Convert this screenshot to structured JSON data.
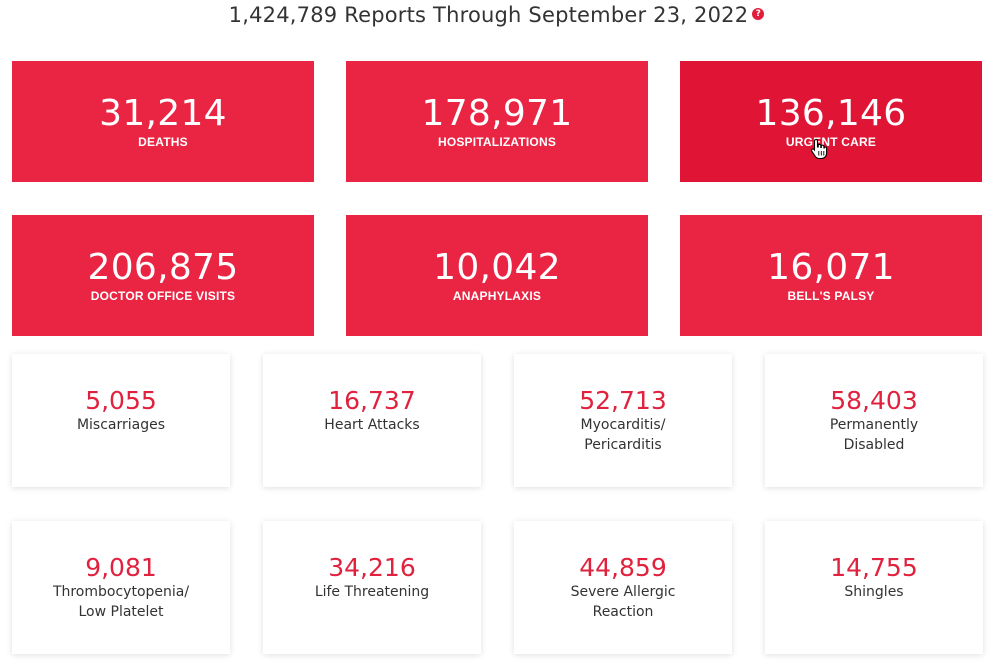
{
  "header": {
    "title": "1,424,789 Reports Through September 23, 2022",
    "help_glyph": "?"
  },
  "primary_stats": [
    {
      "value": "31,214",
      "label": "DEATHS"
    },
    {
      "value": "178,971",
      "label": "HOSPITALIZATIONS"
    },
    {
      "value": "136,146",
      "label": "URGENT CARE"
    },
    {
      "value": "206,875",
      "label": "DOCTOR OFFICE VISITS"
    },
    {
      "value": "10,042",
      "label": "ANAPHYLAXIS"
    },
    {
      "value": "16,071",
      "label": "BELL'S PALSY"
    }
  ],
  "secondary_stats": [
    {
      "value": "5,055",
      "line1": "Miscarriages",
      "line2": ""
    },
    {
      "value": "16,737",
      "line1": "Heart Attacks",
      "line2": ""
    },
    {
      "value": "52,713",
      "line1": "Myocarditis/",
      "line2": "Pericarditis"
    },
    {
      "value": "58,403",
      "line1": "Permanently",
      "line2": "Disabled"
    },
    {
      "value": "9,081",
      "line1": "Thrombocytopenia/",
      "line2": "Low Platelet"
    },
    {
      "value": "34,216",
      "line1": "Life Threatening",
      "line2": ""
    },
    {
      "value": "44,859",
      "line1": "Severe Allergic",
      "line2": "Reaction"
    },
    {
      "value": "14,755",
      "line1": "Shingles",
      "line2": ""
    }
  ],
  "colors": {
    "accent": "#ea2443",
    "accent_hover": "#e01535",
    "number_red": "#e0223e",
    "text": "#333333"
  }
}
